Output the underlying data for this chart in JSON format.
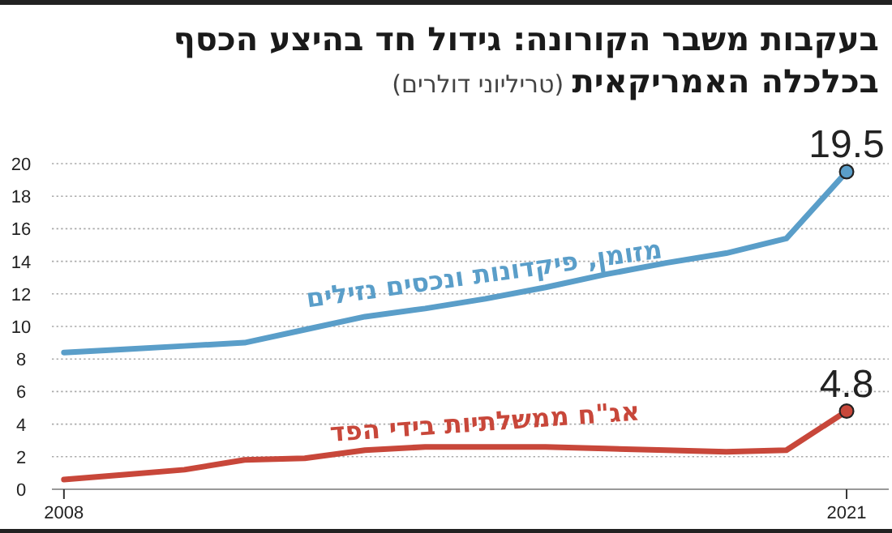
{
  "chart_data": {
    "type": "line",
    "title": "בעקבות משבר הקורונה: גידול חד בהיצע הכסף בכלכלה האמריקאית",
    "subtitle": "(טריליוני דולרים)",
    "x": [
      2008,
      2009,
      2010,
      2011,
      2012,
      2013,
      2014,
      2015,
      2016,
      2017,
      2018,
      2019,
      2020,
      2021
    ],
    "series": [
      {
        "name": "מזומן, פיקדונות ונכסים נזילים",
        "color": "#5a9ec9",
        "values": [
          8.4,
          8.6,
          8.8,
          9.0,
          9.8,
          10.6,
          11.1,
          11.7,
          12.4,
          13.2,
          13.9,
          14.5,
          15.4,
          19.5
        ],
        "value_labels": [
          null,
          null,
          null,
          null,
          null,
          null,
          null,
          null,
          null,
          null,
          null,
          null,
          null,
          "19.5"
        ]
      },
      {
        "name": "אג\"ח ממשלתיות בידי הפד",
        "color": "#c8473a",
        "values": [
          0.6,
          0.9,
          1.2,
          1.8,
          1.9,
          2.4,
          2.6,
          2.6,
          2.6,
          2.5,
          2.4,
          2.3,
          2.4,
          4.8
        ],
        "value_labels": [
          null,
          null,
          null,
          null,
          null,
          null,
          null,
          null,
          null,
          null,
          null,
          null,
          null,
          "4.8"
        ]
      }
    ],
    "xlim": [
      2007.8,
      2021.7
    ],
    "xticks": [
      2008,
      2021
    ],
    "ylim": [
      0,
      20
    ],
    "yticks": [
      0,
      2,
      4,
      6,
      8,
      10,
      12,
      14,
      16,
      18,
      20
    ],
    "grid": "y",
    "legend": false
  }
}
